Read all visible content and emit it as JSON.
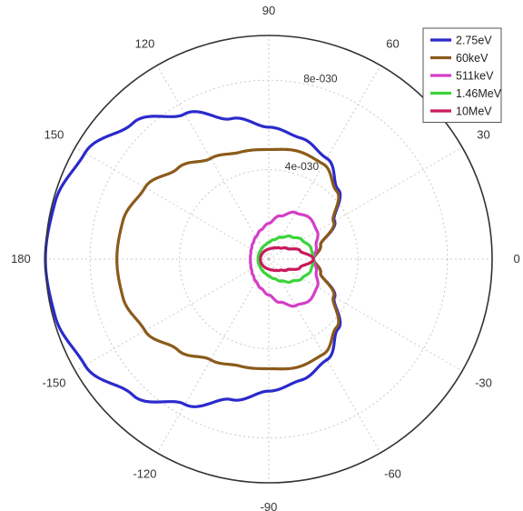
{
  "chart_data": {
    "type": "line",
    "subtype": "polar",
    "theta_unit": "degrees",
    "angular_ticks": [
      {
        "angle": 0,
        "label": "0"
      },
      {
        "angle": 30,
        "label": "30"
      },
      {
        "angle": 60,
        "label": "60"
      },
      {
        "angle": 90,
        "label": "90"
      },
      {
        "angle": 120,
        "label": "120"
      },
      {
        "angle": 150,
        "label": "150"
      },
      {
        "angle": 180,
        "label": "180"
      },
      {
        "angle": -150,
        "label": "-150"
      },
      {
        "angle": -120,
        "label": "-120"
      },
      {
        "angle": -90,
        "label": "-90"
      },
      {
        "angle": -60,
        "label": "-60"
      },
      {
        "angle": -30,
        "label": "-30"
      }
    ],
    "radial_ticks": [
      {
        "value": 4e-30,
        "label": "4e-030"
      },
      {
        "value": 8e-30,
        "label": "8e-030"
      }
    ],
    "rlim": [
      0,
      1e-29
    ],
    "grid": true,
    "legend_position": "top-right",
    "series": [
      {
        "name": "2.75eV",
        "color": "#2a2acc",
        "r": [
          2e-30,
          2.4e-30,
          3.4e-30,
          4.4e-30,
          5.2e-30,
          5.6e-30,
          5.9e-30,
          6.5e-30,
          7.5e-30,
          8.6e-30,
          9.5e-30,
          9.9e-30,
          1e-29
        ]
      },
      {
        "name": "60keV",
        "color": "#8b5a1a",
        "r": [
          2e-30,
          2.4e-30,
          3.35e-30,
          4.3e-30,
          4.9e-30,
          5e-30,
          4.9e-30,
          4.95e-30,
          5.2e-30,
          5.75e-30,
          6.4e-30,
          6.75e-30,
          6.8e-30
        ]
      },
      {
        "name": "511keV",
        "color": "#d33fc7",
        "r": [
          2e-30,
          2.2e-30,
          2.5e-30,
          2.6e-30,
          2.4e-30,
          2e-30,
          1.6e-30,
          1.35e-30,
          1.15e-30,
          1e-30,
          9e-31,
          8.4e-31,
          8.2e-31
        ]
      },
      {
        "name": "1.46MeV",
        "color": "#3ad43a",
        "r": [
          2e-30,
          1.95e-30,
          1.72e-30,
          1.42e-30,
          1.13e-30,
          9e-31,
          7.5e-31,
          6.5e-31,
          5.8e-31,
          5.3e-31,
          5e-31,
          4.9e-31,
          4.8e-31
        ]
      },
      {
        "name": "10MeV",
        "color": "#c8195c",
        "r": [
          2e-30,
          1.45e-30,
          9.5e-31,
          7e-31,
          5.8e-31,
          5e-31,
          4.5e-31,
          4.2e-31,
          4e-31,
          3.9e-31,
          3.8e-31,
          3.75e-31,
          3.7e-31
        ]
      }
    ],
    "theta_samples_deg": [
      0,
      15,
      30,
      45,
      60,
      75,
      90,
      105,
      120,
      135,
      150,
      165,
      180
    ],
    "symmetry": "mirror about 0-180 axis"
  }
}
